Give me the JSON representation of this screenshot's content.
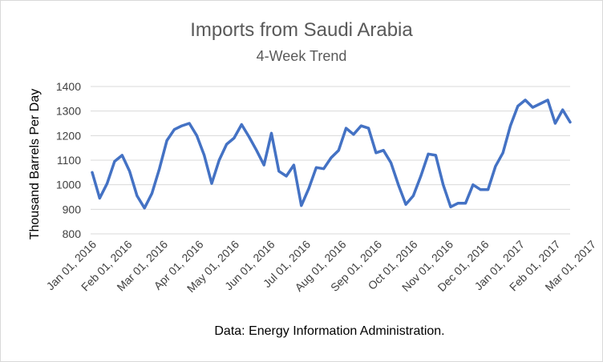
{
  "chart_data": {
    "type": "line",
    "title": "Imports from Saudi Arabia",
    "subtitle": "4-Week Trend",
    "xlabel": "",
    "ylabel": "Thousand Barrels Per Day",
    "footer": "Data: Energy Information Administration.",
    "ylim": [
      800,
      1400
    ],
    "yticks": [
      800,
      900,
      1000,
      1100,
      1200,
      1300,
      1400
    ],
    "x_tick_labels": [
      "Jan 01, 2016",
      "Feb 01, 2016",
      "Mar 01, 2016",
      "Apr 01, 2016",
      "May 01, 2016",
      "Jun 01, 2016",
      "Jul 01, 2016",
      "Aug 01, 2016",
      "Sep 01, 2016",
      "Oct 01, 2016",
      "Nov 01, 2016",
      "Dec 01, 2016",
      "Jan 01, 2017",
      "Feb 01, 2017",
      "Mar 01, 2017"
    ],
    "grid": true,
    "line_color": "#4472c4",
    "series": [
      {
        "values": [
          1050,
          945,
          1005,
          1095,
          1120,
          1055,
          955,
          905,
          965,
          1065,
          1180,
          1225,
          1240,
          1250,
          1200,
          1120,
          1005,
          1100,
          1165,
          1190,
          1245,
          1195,
          1140,
          1080,
          1210,
          1055,
          1035,
          1080,
          915,
          985,
          1070,
          1065,
          1110,
          1140,
          1230,
          1205,
          1240,
          1230,
          1130,
          1140,
          1090,
          1000,
          920,
          955,
          1035,
          1125,
          1120,
          1000,
          910,
          925,
          925,
          1000,
          980,
          980,
          1075,
          1130,
          1240,
          1320,
          1345,
          1315,
          1330,
          1345,
          1250,
          1305,
          1255
        ]
      }
    ]
  }
}
